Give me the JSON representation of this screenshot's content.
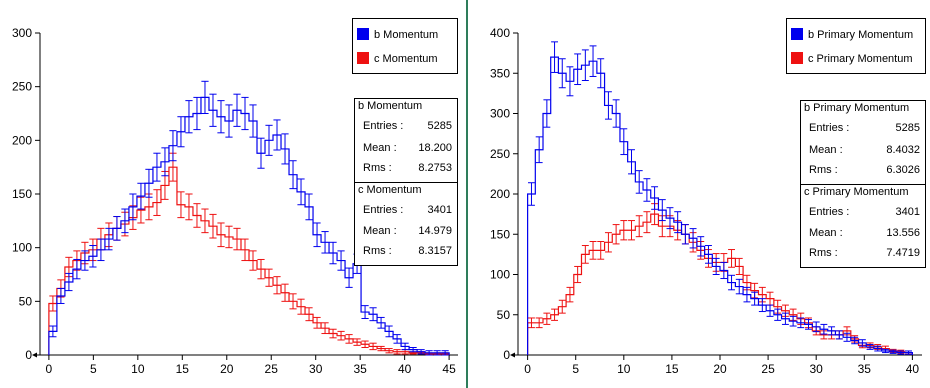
{
  "colors": {
    "b": "#0000ee",
    "c": "#ee1111",
    "divider": "#2e7d5b"
  },
  "chart_data": [
    {
      "type": "histogram",
      "title": "",
      "xlabel": "",
      "ylabel": "",
      "xlim": [
        -1,
        46
      ],
      "ylim": [
        0,
        300
      ],
      "xticks": [
        0,
        5,
        10,
        15,
        20,
        25,
        30,
        35,
        40,
        45
      ],
      "yticks": [
        0,
        50,
        100,
        150,
        200,
        250,
        300
      ],
      "legend": {
        "position": "top-right",
        "entries": [
          "b Momentum",
          "c Momentum"
        ]
      },
      "series": [
        {
          "name": "b Momentum",
          "color": "#0000ee",
          "bin_width": 0.9,
          "x": [
            0.45,
            1.35,
            2.25,
            3.15,
            4.05,
            4.95,
            5.85,
            6.75,
            7.65,
            8.55,
            9.45,
            10.35,
            11.25,
            12.15,
            13.05,
            13.95,
            14.85,
            15.75,
            16.65,
            17.55,
            18.45,
            19.35,
            20.25,
            21.15,
            22.05,
            22.95,
            23.85,
            24.75,
            25.65,
            26.55,
            27.45,
            28.35,
            29.25,
            30.15,
            31.05,
            31.95,
            32.85,
            33.75,
            34.65,
            35.55,
            36.45,
            37.35,
            38.25,
            39.15,
            40.05,
            40.95,
            41.85,
            42.75,
            43.65,
            44.55
          ],
          "values": [
            22,
            55,
            68,
            80,
            88,
            92,
            98,
            108,
            118,
            125,
            138,
            148,
            160,
            175,
            180,
            195,
            208,
            222,
            225,
            240,
            228,
            222,
            218,
            228,
            225,
            218,
            188,
            200,
            205,
            192,
            168,
            152,
            138,
            112,
            105,
            95,
            88,
            72,
            85,
            40,
            38,
            30,
            22,
            15,
            8,
            5,
            3,
            2,
            2,
            2
          ],
          "errors": [
            5,
            7,
            8,
            9,
            9,
            10,
            10,
            10,
            11,
            11,
            12,
            12,
            13,
            13,
            13,
            14,
            14,
            15,
            15,
            15,
            15,
            15,
            15,
            15,
            15,
            15,
            14,
            14,
            14,
            14,
            13,
            12,
            12,
            11,
            10,
            10,
            9,
            9,
            9,
            6,
            6,
            5,
            5,
            4,
            3,
            2,
            2,
            2,
            2,
            2
          ],
          "stats": {
            "title": "b Momentum",
            "entries": "5285",
            "mean": "18.200",
            "rms": "8.2753"
          }
        },
        {
          "name": "c Momentum",
          "color": "#ee1111",
          "bin_width": 0.9,
          "x": [
            0.45,
            1.35,
            2.25,
            3.15,
            4.05,
            4.95,
            5.85,
            6.75,
            7.65,
            8.55,
            9.45,
            10.35,
            11.25,
            12.15,
            13.05,
            13.95,
            14.85,
            15.75,
            16.65,
            17.55,
            18.45,
            19.35,
            20.25,
            21.15,
            22.05,
            22.95,
            23.85,
            24.75,
            25.65,
            26.55,
            27.45,
            28.35,
            29.25,
            30.15,
            31.05,
            31.95,
            32.85,
            33.75,
            34.65,
            35.55,
            36.45,
            37.35,
            38.25,
            39.15,
            40.05,
            40.95,
            41.85,
            42.75,
            43.65,
            44.55
          ],
          "values": [
            48,
            62,
            82,
            88,
            95,
            98,
            108,
            112,
            118,
            122,
            128,
            135,
            138,
            142,
            158,
            175,
            140,
            138,
            130,
            125,
            120,
            112,
            110,
            108,
            98,
            88,
            80,
            72,
            65,
            58,
            50,
            45,
            38,
            30,
            25,
            20,
            18,
            15,
            12,
            10,
            8,
            6,
            4,
            3,
            3,
            2,
            2,
            1,
            1,
            1
          ],
          "errors": [
            7,
            8,
            9,
            9,
            10,
            10,
            10,
            11,
            11,
            11,
            11,
            12,
            12,
            12,
            13,
            13,
            12,
            12,
            11,
            11,
            11,
            11,
            10,
            10,
            10,
            9,
            9,
            8,
            8,
            8,
            7,
            7,
            6,
            5,
            5,
            4,
            4,
            4,
            3,
            3,
            3,
            2,
            2,
            2,
            2,
            1,
            1,
            1,
            1,
            1
          ],
          "stats": {
            "title": "c Momentum",
            "entries": "3401",
            "mean": "14.979",
            "rms": "8.3157"
          }
        }
      ]
    },
    {
      "type": "histogram",
      "title": "",
      "xlabel": "",
      "ylabel": "",
      "xlim": [
        -1,
        41
      ],
      "ylim": [
        0,
        400
      ],
      "xticks": [
        0,
        5,
        10,
        15,
        20,
        25,
        30,
        35,
        40
      ],
      "yticks": [
        0,
        50,
        100,
        150,
        200,
        250,
        300,
        350,
        400
      ],
      "legend": {
        "position": "top-right",
        "entries": [
          "b Primary Momentum",
          "c Primary Momentum"
        ]
      },
      "series": [
        {
          "name": "b Primary Momentum",
          "color": "#0000ee",
          "bin_width": 0.8,
          "x": [
            0.4,
            1.2,
            2.0,
            2.8,
            3.6,
            4.4,
            5.2,
            6.0,
            6.8,
            7.6,
            8.4,
            9.2,
            10.0,
            10.8,
            11.6,
            12.4,
            13.2,
            14.0,
            14.8,
            15.6,
            16.4,
            17.2,
            18.0,
            18.8,
            19.6,
            20.4,
            21.2,
            22.0,
            22.8,
            23.6,
            24.4,
            25.2,
            26.0,
            26.8,
            27.6,
            28.4,
            29.2,
            30.0,
            30.8,
            31.6,
            32.4,
            33.2,
            34.0,
            34.8,
            35.6,
            36.4,
            37.2,
            38.0,
            38.8,
            39.6
          ],
          "values": [
            200,
            255,
            300,
            370,
            350,
            340,
            355,
            360,
            365,
            350,
            310,
            300,
            265,
            240,
            215,
            205,
            195,
            180,
            170,
            165,
            150,
            145,
            135,
            125,
            110,
            105,
            90,
            85,
            75,
            70,
            62,
            55,
            50,
            45,
            42,
            40,
            38,
            35,
            32,
            30,
            25,
            22,
            18,
            15,
            10,
            8,
            5,
            4,
            3,
            3
          ],
          "errors": [
            14,
            16,
            17,
            19,
            18,
            18,
            19,
            19,
            19,
            18,
            17,
            17,
            16,
            15,
            14,
            14,
            14,
            13,
            13,
            13,
            12,
            12,
            12,
            11,
            10,
            10,
            9,
            9,
            9,
            8,
            8,
            7,
            7,
            7,
            6,
            6,
            6,
            6,
            6,
            5,
            5,
            5,
            4,
            4,
            3,
            3,
            2,
            2,
            2,
            2
          ],
          "stats": {
            "title": "b Primary Momentum",
            "entries": "5285",
            "mean": "8.4032",
            "rms": "6.3026"
          }
        },
        {
          "name": "c Primary Momentum",
          "color": "#ee1111",
          "bin_width": 0.8,
          "x": [
            0.4,
            1.2,
            2.0,
            2.8,
            3.6,
            4.4,
            5.2,
            6.0,
            6.8,
            7.6,
            8.4,
            9.2,
            10.0,
            10.8,
            11.6,
            12.4,
            13.2,
            14.0,
            14.8,
            15.6,
            16.4,
            17.2,
            18.0,
            18.8,
            19.6,
            20.4,
            21.2,
            22.0,
            22.8,
            23.6,
            24.4,
            25.2,
            26.0,
            26.8,
            27.6,
            28.4,
            29.2,
            30.0,
            30.8,
            31.6,
            32.4,
            33.2,
            34.0,
            34.8,
            35.6,
            36.4,
            37.2,
            38.0,
            38.8,
            39.6
          ],
          "values": [
            40,
            40,
            45,
            50,
            60,
            75,
            100,
            125,
            130,
            130,
            140,
            150,
            155,
            155,
            160,
            165,
            175,
            160,
            160,
            155,
            150,
            140,
            130,
            120,
            115,
            115,
            120,
            110,
            90,
            80,
            75,
            70,
            60,
            55,
            50,
            45,
            40,
            30,
            25,
            25,
            25,
            30,
            20,
            12,
            12,
            10,
            8,
            5,
            4,
            3
          ],
          "errors": [
            6,
            6,
            7,
            7,
            8,
            9,
            10,
            11,
            11,
            11,
            12,
            12,
            12,
            12,
            13,
            13,
            13,
            13,
            13,
            12,
            12,
            12,
            11,
            11,
            11,
            11,
            11,
            10,
            9,
            9,
            9,
            8,
            8,
            7,
            7,
            7,
            6,
            5,
            5,
            5,
            5,
            5,
            4,
            3,
            3,
            3,
            3,
            2,
            2,
            2
          ],
          "stats": {
            "title": "c Primary Momentum",
            "entries": "3401",
            "mean": "13.556",
            "rms": "7.4719"
          }
        }
      ]
    }
  ],
  "labels": {
    "entries": "Entries :",
    "mean": "Mean :",
    "rms": "Rms :"
  }
}
